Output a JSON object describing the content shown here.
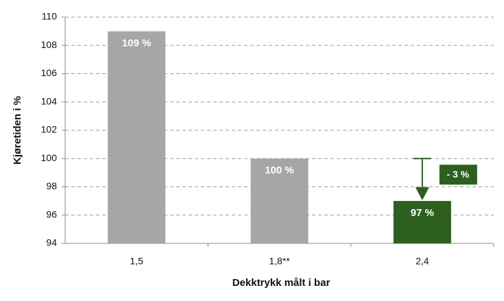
{
  "chart_data": {
    "type": "bar",
    "categories": [
      "1,5",
      "1,8**",
      "2,4"
    ],
    "values": [
      109,
      100,
      97
    ],
    "value_labels": [
      "109 %",
      "100 %",
      "97 %"
    ],
    "colors": [
      "#a6a6a6",
      "#a6a6a6",
      "#2d5f1f"
    ],
    "xlabel": "Dekktrykk målt i bar",
    "ylabel": "Kjøretiden i %",
    "annotation": "- 3 %",
    "ylim": [
      94,
      110
    ],
    "yticks": [
      94,
      96,
      98,
      100,
      102,
      104,
      106,
      108,
      110
    ],
    "grid": true
  }
}
